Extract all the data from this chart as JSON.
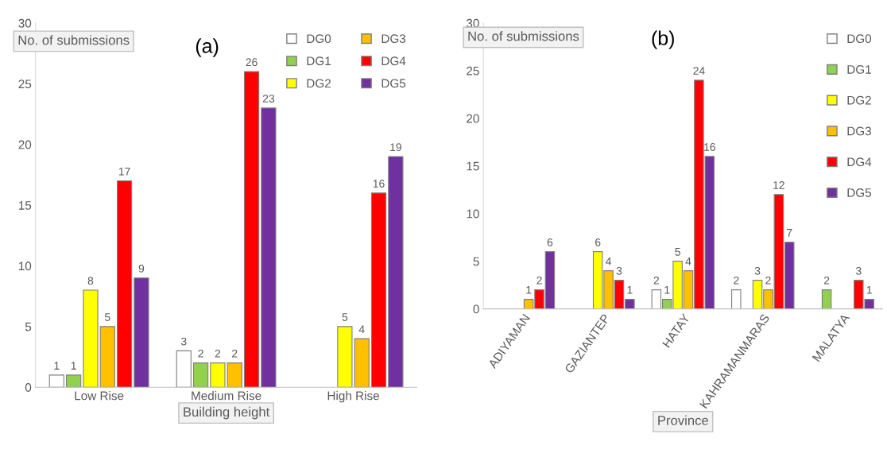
{
  "chart_data": [
    {
      "type": "bar",
      "title": "(a)",
      "xlabel": "Building height",
      "ylabel": "No. of submissions",
      "categories": [
        "Low Rise",
        "Medium Rise",
        "High Rise"
      ],
      "ylim": [
        0,
        30
      ],
      "yticks": [
        0,
        5,
        10,
        15,
        20,
        25,
        30
      ],
      "grid": false,
      "legend": "top right",
      "data_labels": true,
      "series": [
        {
          "name": "DG0",
          "color": "#ffffff",
          "values": [
            1,
            3,
            null
          ]
        },
        {
          "name": "DG1",
          "color": "#92d050",
          "values": [
            1,
            2,
            null
          ]
        },
        {
          "name": "DG2",
          "color": "#ffff00",
          "values": [
            8,
            2,
            5
          ]
        },
        {
          "name": "DG3",
          "color": "#ffc000",
          "values": [
            5,
            2,
            4
          ]
        },
        {
          "name": "DG4",
          "color": "#ff0000",
          "values": [
            17,
            26,
            16
          ]
        },
        {
          "name": "DG5",
          "color": "#7030a0",
          "values": [
            9,
            23,
            19
          ]
        }
      ]
    },
    {
      "type": "bar",
      "title": "(b)",
      "xlabel": "Province",
      "ylabel": "No. of submissions",
      "categories": [
        "ADIYAMAN",
        "GAZIANTEP",
        "HATAY",
        "KAHRAMANMARAS",
        "MALATYA"
      ],
      "ylim": [
        0,
        30
      ],
      "yticks": [
        0,
        5,
        10,
        15,
        20,
        25,
        30
      ],
      "grid": false,
      "legend": "right",
      "data_labels": true,
      "series": [
        {
          "name": "DG0",
          "color": "#ffffff",
          "values": [
            null,
            null,
            2,
            2,
            null
          ]
        },
        {
          "name": "DG1",
          "color": "#92d050",
          "values": [
            null,
            null,
            1,
            null,
            2
          ]
        },
        {
          "name": "DG2",
          "color": "#ffff00",
          "values": [
            null,
            6,
            5,
            3,
            null
          ]
        },
        {
          "name": "DG3",
          "color": "#ffc000",
          "values": [
            1,
            4,
            4,
            2,
            null
          ]
        },
        {
          "name": "DG4",
          "color": "#ff0000",
          "values": [
            2,
            3,
            24,
            12,
            3
          ]
        },
        {
          "name": "DG5",
          "color": "#7030a0",
          "values": [
            6,
            1,
            16,
            7,
            1
          ]
        }
      ]
    }
  ]
}
